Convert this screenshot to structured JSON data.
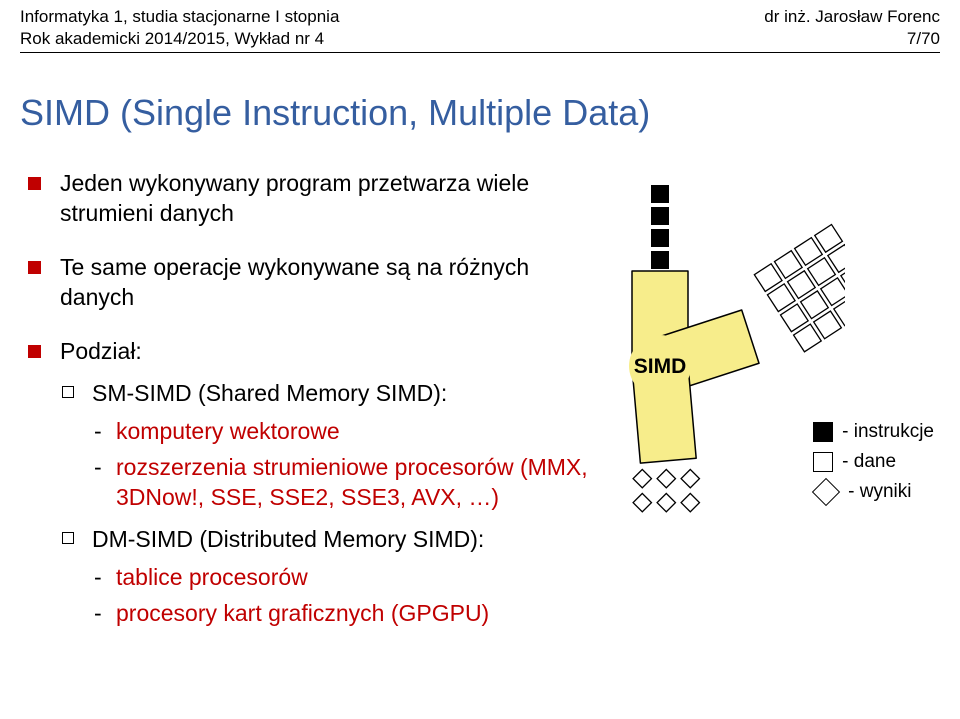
{
  "header": {
    "left_line1": "Informatyka 1, studia stacjonarne I stopnia",
    "left_line2": "Rok akademicki 2014/2015, Wykład nr 4",
    "right_line1": "dr inż. Jarosław Forenc",
    "right_line2": "7/70"
  },
  "title": "SIMD (Single Instruction, Multiple Data)",
  "bullets": {
    "b1a": "Jeden wykonywany program przetwarza wiele strumieni danych",
    "b1b": "Te same operacje wykonywane są na różnych danych",
    "b1c": "Podział:",
    "b2a": "SM-SIMD (Shared Memory SIMD):",
    "b3a": "komputery wektorowe",
    "b3b": "rozszerzenia strumieniowe procesorów (MMX, 3DNow!, SSE, SSE2, SSE3, AVX, …)",
    "b2b": "DM-SIMD (Distributed Memory SIMD):",
    "b3c": "tablice procesorów",
    "b3d": "procesory kart graficznych (GPGPU)"
  },
  "legend": {
    "l1": "- instrukcje",
    "l2": "- dane",
    "l3": "- wyniki"
  },
  "diagram": {
    "label": "SIMD",
    "label_font_size": 21,
    "label_font_weight": "bold",
    "body_fill": "#f7ed8b",
    "body_stroke": "#000000",
    "body_stroke_width": 1.5,
    "instr_cell": 18,
    "instr_gap": 4,
    "instr_count": 4,
    "data_cell": 20,
    "data_gap": 4,
    "data_cols": 4,
    "data_rows": 4,
    "result_diamond": 13,
    "result_cols": 3,
    "result_rows": 3,
    "result_gap": 4,
    "colors": {
      "instr_fill": "#000000",
      "data_fill": "#ffffff",
      "data_stroke": "#000000",
      "result_fill": "#ffffff",
      "result_stroke": "#000000"
    }
  }
}
